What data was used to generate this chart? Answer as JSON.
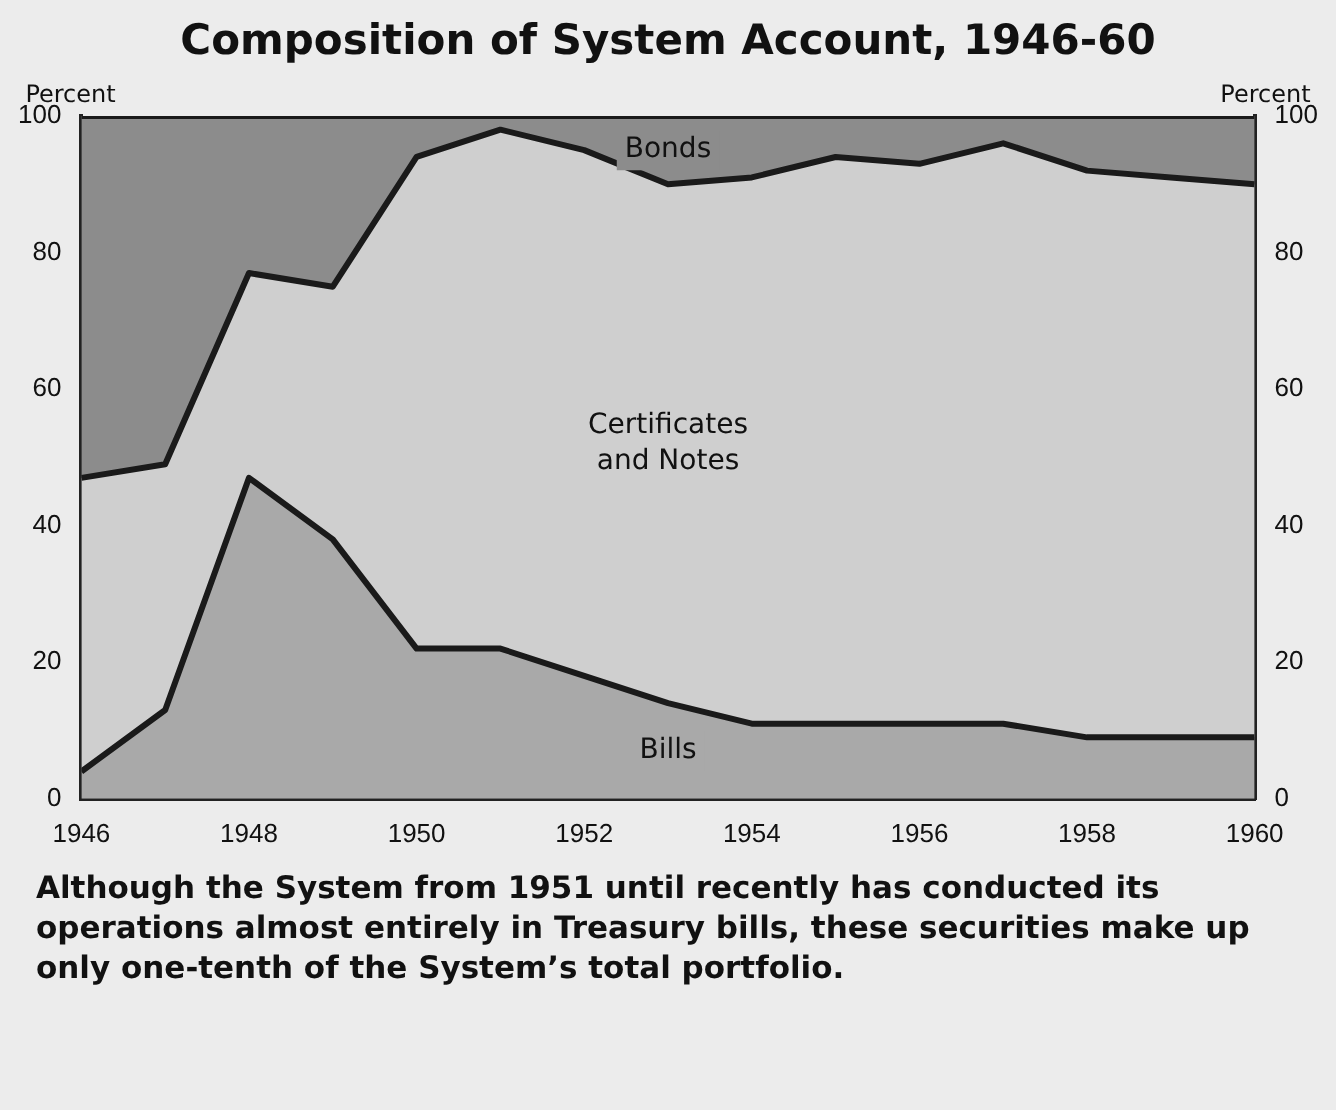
{
  "chart_data": {
    "type": "area",
    "stacked": true,
    "title": "Composition of System Account, 1946-60",
    "ylabel": "Percent",
    "y2label": "Percent",
    "x": [
      1946,
      1947,
      1948,
      1949,
      1950,
      1951,
      1952,
      1953,
      1954,
      1955,
      1956,
      1957,
      1958,
      1959,
      1960
    ],
    "series": [
      {
        "name": "Bills",
        "color": "#a9a9a9",
        "values": [
          4,
          13,
          47,
          38,
          22,
          22,
          18,
          14,
          11,
          11,
          11,
          11,
          9,
          9,
          9
        ]
      },
      {
        "name": "Certificates and Notes",
        "color": "#cfcfcf",
        "values": [
          43,
          36,
          30,
          37,
          72,
          76,
          77,
          76,
          80,
          83,
          82,
          85,
          83,
          82,
          81
        ]
      },
      {
        "name": "Bonds",
        "color": "#8c8c8c",
        "values": [
          53,
          51,
          23,
          25,
          6,
          2,
          5,
          10,
          9,
          6,
          7,
          4,
          8,
          9,
          10
        ]
      }
    ],
    "xlim": [
      1946,
      1960
    ],
    "xticks": [
      1946,
      1948,
      1950,
      1952,
      1954,
      1956,
      1958,
      1960
    ],
    "ylim": [
      0,
      100
    ],
    "yticks": [
      0,
      20,
      40,
      60,
      80,
      100
    ],
    "y2lim": [
      0,
      100
    ],
    "y2ticks": [
      0,
      20,
      40,
      60,
      80,
      100
    ],
    "grid": false,
    "legend": false,
    "annotations": [
      "Although the System from 1951 until recently has conducted its operations almost entirely in Treasury bills, these securities make up only one-tenth of the System’s total portfolio."
    ]
  }
}
